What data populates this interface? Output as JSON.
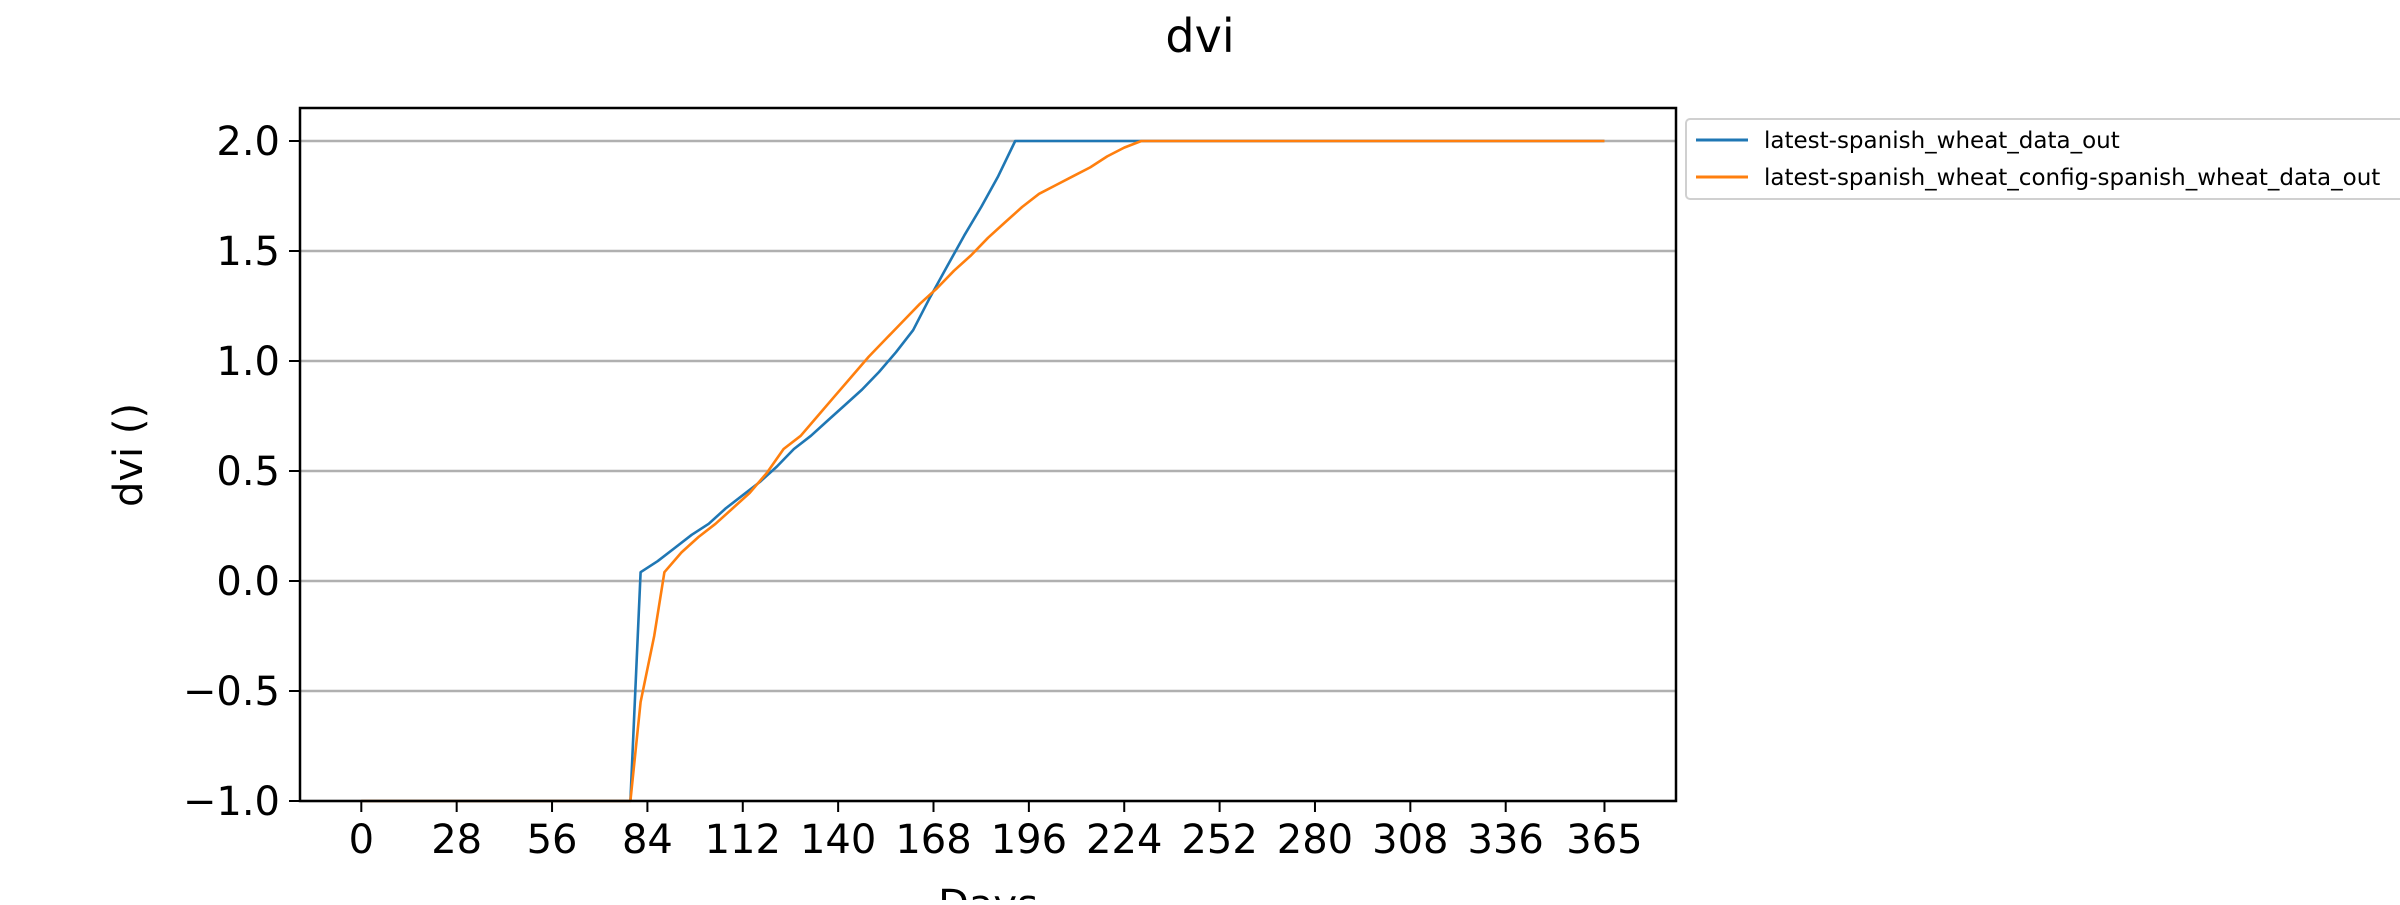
{
  "chart_data": {
    "type": "line",
    "title": "dvi",
    "xlabel": "Days",
    "ylabel": "dvi ()",
    "xlim": [
      -18,
      386
    ],
    "ylim": [
      -1.0,
      2.15
    ],
    "xticks": [
      0,
      28,
      56,
      84,
      112,
      140,
      168,
      196,
      224,
      252,
      280,
      308,
      336,
      365
    ],
    "xtick_labels": [
      "0",
      "28",
      "56",
      "84",
      "112",
      "140",
      "168",
      "196",
      "224",
      "252",
      "280",
      "308",
      "336",
      "365"
    ],
    "yticks": [
      -1.0,
      -0.5,
      0.0,
      0.5,
      1.0,
      1.5,
      2.0
    ],
    "ytick_labels": [
      "−1.0",
      "−0.5",
      "0.0",
      "0.5",
      "1.0",
      "1.5",
      "2.0"
    ],
    "grid": "horizontal",
    "legend_position": "outside top-right",
    "series": [
      {
        "name": "latest-spanish_wheat_data_out",
        "color": "#1f77b4",
        "x": [
          0,
          56,
          79,
          82,
          87,
          92,
          97,
          102,
          107,
          112,
          117,
          122,
          127,
          132,
          137,
          142,
          147,
          152,
          157,
          162,
          167,
          172,
          177,
          182,
          187,
          192,
          200,
          224,
          260,
          300,
          340,
          365
        ],
        "y": [
          -1.0,
          -1.0,
          -1.0,
          0.04,
          0.09,
          0.15,
          0.21,
          0.26,
          0.33,
          0.39,
          0.45,
          0.52,
          0.6,
          0.66,
          0.73,
          0.8,
          0.87,
          0.95,
          1.04,
          1.14,
          1.29,
          1.43,
          1.57,
          1.7,
          1.84,
          2.0,
          2.0,
          2.0,
          2.0,
          2.0,
          2.0,
          2.0
        ]
      },
      {
        "name": "latest-spanish_wheat_config-spanish_wheat_data_out",
        "color": "#ff7f0e",
        "x": [
          0,
          56,
          79,
          82,
          86,
          89,
          94,
          99,
          104,
          109,
          114,
          119,
          124,
          129,
          134,
          139,
          144,
          149,
          154,
          159,
          164,
          169,
          174,
          179,
          184,
          189,
          194,
          199,
          204,
          209,
          214,
          219,
          224,
          229,
          260,
          300,
          340,
          365
        ],
        "y": [
          -1.0,
          -1.0,
          -1.0,
          -0.55,
          -0.25,
          0.04,
          0.13,
          0.2,
          0.26,
          0.33,
          0.4,
          0.49,
          0.6,
          0.66,
          0.75,
          0.84,
          0.93,
          1.02,
          1.1,
          1.18,
          1.26,
          1.33,
          1.41,
          1.48,
          1.56,
          1.63,
          1.7,
          1.76,
          1.8,
          1.84,
          1.88,
          1.93,
          1.97,
          2.0,
          2.0,
          2.0,
          2.0,
          2.0
        ]
      }
    ]
  }
}
